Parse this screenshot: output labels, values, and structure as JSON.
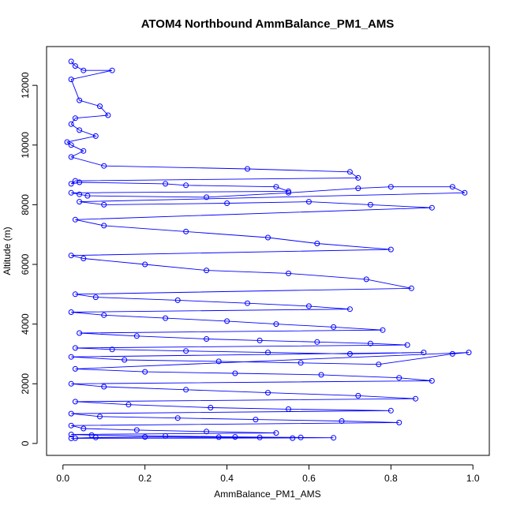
{
  "chart_data": {
    "type": "scatter",
    "title": "ATOM4 Northbound AmmBalance_PM1_AMS",
    "xlabel": "AmmBalance_PM1_AMS",
    "ylabel": "Altitude (m)",
    "xlim": [
      -0.04,
      1.04
    ],
    "ylim": [
      -400,
      13300
    ],
    "x_ticks": [
      0,
      0.2,
      0.4,
      0.6,
      0.8,
      1.0
    ],
    "x_tick_labels": [
      "0.0",
      "0.2",
      "0.4",
      "0.6",
      "0.8",
      "1.0"
    ],
    "y_ticks": [
      0,
      2000,
      4000,
      6000,
      8000,
      10000,
      12000
    ],
    "y_tick_labels": [
      "0",
      "2000",
      "4000",
      "6000",
      "8000",
      "10000",
      "12000"
    ],
    "grid": false,
    "marker": "open-circle",
    "line_connected": true,
    "color": "#0000ff",
    "series": [
      {
        "x": [
          0.02,
          0.03,
          0.05,
          0.12,
          0.02,
          0.04,
          0.09,
          0.11,
          0.03,
          0.02,
          0.04,
          0.08,
          0.01,
          0.02,
          0.05,
          0.02,
          0.1,
          0.45,
          0.7,
          0.72,
          0.03,
          0.02,
          0.04,
          0.25,
          0.3,
          0.52,
          0.55,
          0.02,
          0.04,
          0.06,
          0.35,
          0.55,
          0.72,
          0.8,
          0.95,
          0.98,
          0.04,
          0.1,
          0.4,
          0.6,
          0.75,
          0.9,
          0.03,
          0.1,
          0.3,
          0.5,
          0.62,
          0.8,
          0.02,
          0.05,
          0.2,
          0.35,
          0.55,
          0.74,
          0.85,
          0.03,
          0.08,
          0.28,
          0.45,
          0.6,
          0.7,
          0.02,
          0.1,
          0.25,
          0.4,
          0.52,
          0.66,
          0.78,
          0.04,
          0.18,
          0.35,
          0.48,
          0.62,
          0.75,
          0.84,
          0.03,
          0.12,
          0.3,
          0.5,
          0.7,
          0.88,
          0.02,
          0.15,
          0.38,
          0.58,
          0.77,
          0.95,
          0.99,
          0.03,
          0.2,
          0.42,
          0.63,
          0.82,
          0.9,
          0.02,
          0.1,
          0.3,
          0.5,
          0.72,
          0.86,
          0.03,
          0.16,
          0.36,
          0.55,
          0.8,
          0.02,
          0.09,
          0.28,
          0.47,
          0.68,
          0.82,
          0.02,
          0.05,
          0.18,
          0.35,
          0.52,
          0.02,
          0.07,
          0.25,
          0.42,
          0.58,
          0.66,
          0.03,
          0.08,
          0.2,
          0.38,
          0.48,
          0.56,
          0.02
        ],
        "y": [
          12800,
          12650,
          12500,
          12500,
          12200,
          11500,
          11300,
          11000,
          10900,
          10700,
          10500,
          10300,
          10100,
          10000,
          9800,
          9600,
          9300,
          9200,
          9100,
          8900,
          8800,
          8700,
          8750,
          8700,
          8650,
          8600,
          8450,
          8400,
          8350,
          8300,
          8250,
          8400,
          8550,
          8600,
          8600,
          8400,
          8100,
          8000,
          8050,
          8100,
          8000,
          7900,
          7500,
          7300,
          7100,
          6900,
          6700,
          6500,
          6300,
          6200,
          6000,
          5800,
          5700,
          5500,
          5200,
          5000,
          4900,
          4800,
          4700,
          4600,
          4500,
          4400,
          4300,
          4200,
          4100,
          4000,
          3900,
          3800,
          3700,
          3600,
          3500,
          3450,
          3400,
          3350,
          3300,
          3200,
          3150,
          3100,
          3050,
          3000,
          3050,
          2900,
          2800,
          2750,
          2700,
          2650,
          3000,
          3050,
          2500,
          2400,
          2350,
          2300,
          2200,
          2100,
          2000,
          1900,
          1800,
          1700,
          1600,
          1500,
          1400,
          1300,
          1200,
          1150,
          1100,
          1000,
          900,
          850,
          800,
          750,
          700,
          600,
          500,
          450,
          400,
          350,
          300,
          280,
          250,
          220,
          200,
          190,
          180,
          200,
          220,
          210,
          200,
          180,
          170
        ]
      }
    ]
  }
}
